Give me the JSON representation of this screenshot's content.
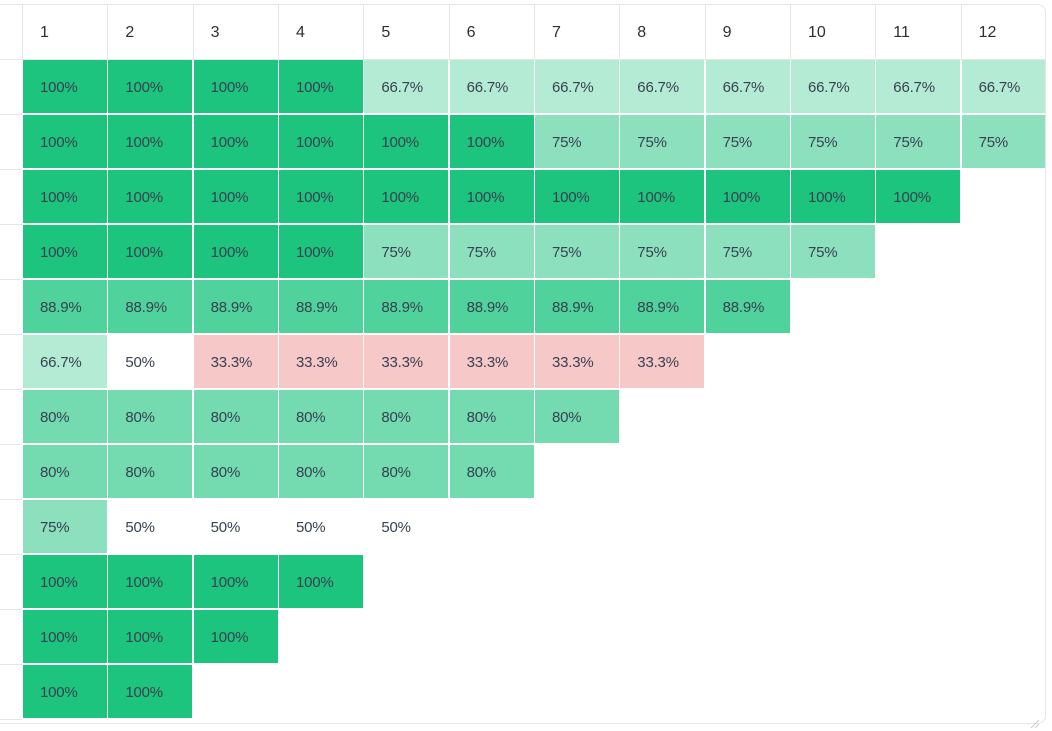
{
  "columns": [
    "1",
    "2",
    "3",
    "4",
    "5",
    "6",
    "7",
    "8",
    "9",
    "10",
    "11",
    "12"
  ],
  "colors": {
    "c100": "#1cc47e",
    "c88_9": "#4fd29b",
    "c80": "#74dbb0",
    "c75": "#8ce0bd",
    "c66_7": "#b4ebd4",
    "c50": "#ffffff",
    "c33_3": "#f7c8c8"
  },
  "rows": [
    {
      "cells": [
        "100%",
        "100%",
        "100%",
        "100%",
        "66.7%",
        "66.7%",
        "66.7%",
        "66.7%",
        "66.7%",
        "66.7%",
        "66.7%",
        "66.7%"
      ],
      "tones": [
        "c100",
        "c100",
        "c100",
        "c100",
        "c66_7",
        "c66_7",
        "c66_7",
        "c66_7",
        "c66_7",
        "c66_7",
        "c66_7",
        "c66_7"
      ]
    },
    {
      "cells": [
        "100%",
        "100%",
        "100%",
        "100%",
        "100%",
        "100%",
        "75%",
        "75%",
        "75%",
        "75%",
        "75%",
        "75%"
      ],
      "tones": [
        "c100",
        "c100",
        "c100",
        "c100",
        "c100",
        "c100",
        "c75",
        "c75",
        "c75",
        "c75",
        "c75",
        "c75"
      ]
    },
    {
      "cells": [
        "100%",
        "100%",
        "100%",
        "100%",
        "100%",
        "100%",
        "100%",
        "100%",
        "100%",
        "100%",
        "100%"
      ],
      "tones": [
        "c100",
        "c100",
        "c100",
        "c100",
        "c100",
        "c100",
        "c100",
        "c100",
        "c100",
        "c100",
        "c100"
      ]
    },
    {
      "cells": [
        "100%",
        "100%",
        "100%",
        "100%",
        "75%",
        "75%",
        "75%",
        "75%",
        "75%",
        "75%"
      ],
      "tones": [
        "c100",
        "c100",
        "c100",
        "c100",
        "c75",
        "c75",
        "c75",
        "c75",
        "c75",
        "c75"
      ]
    },
    {
      "cells": [
        "88.9%",
        "88.9%",
        "88.9%",
        "88.9%",
        "88.9%",
        "88.9%",
        "88.9%",
        "88.9%",
        "88.9%"
      ],
      "tones": [
        "c88_9",
        "c88_9",
        "c88_9",
        "c88_9",
        "c88_9",
        "c88_9",
        "c88_9",
        "c88_9",
        "c88_9"
      ]
    },
    {
      "cells": [
        "66.7%",
        "50%",
        "33.3%",
        "33.3%",
        "33.3%",
        "33.3%",
        "33.3%",
        "33.3%"
      ],
      "tones": [
        "c66_7",
        "c50",
        "c33_3",
        "c33_3",
        "c33_3",
        "c33_3",
        "c33_3",
        "c33_3"
      ]
    },
    {
      "cells": [
        "80%",
        "80%",
        "80%",
        "80%",
        "80%",
        "80%",
        "80%"
      ],
      "tones": [
        "c80",
        "c80",
        "c80",
        "c80",
        "c80",
        "c80",
        "c80"
      ]
    },
    {
      "cells": [
        "80%",
        "80%",
        "80%",
        "80%",
        "80%",
        "80%"
      ],
      "tones": [
        "c80",
        "c80",
        "c80",
        "c80",
        "c80",
        "c80"
      ]
    },
    {
      "cells": [
        "75%",
        "50%",
        "50%",
        "50%",
        "50%"
      ],
      "tones": [
        "c75",
        "c50",
        "c50",
        "c50",
        "c50"
      ]
    },
    {
      "cells": [
        "100%",
        "100%",
        "100%",
        "100%"
      ],
      "tones": [
        "c100",
        "c100",
        "c100",
        "c100"
      ]
    },
    {
      "cells": [
        "100%",
        "100%",
        "100%"
      ],
      "tones": [
        "c100",
        "c100",
        "c100"
      ]
    },
    {
      "cells": [
        "100%",
        "100%"
      ],
      "tones": [
        "c100",
        "c100"
      ]
    }
  ]
}
